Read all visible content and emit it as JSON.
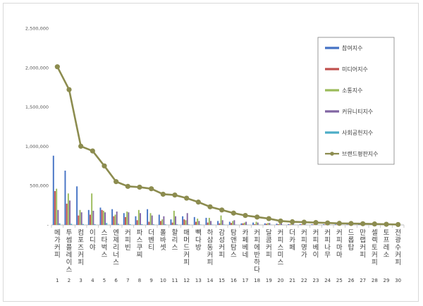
{
  "chart_data": {
    "type": "bar",
    "title": "",
    "xlabel": "",
    "ylabel": "",
    "ylim": [
      0,
      2500000
    ],
    "yticks": [
      "-",
      "500,000",
      "1,000,000",
      "1,500,000",
      "2,000,000",
      "2,500,000"
    ],
    "grid": false,
    "legend_position": "right",
    "indices": [
      "1",
      "2",
      "3",
      "4",
      "5",
      "6",
      "7",
      "8",
      "9",
      "10",
      "11",
      "12",
      "13",
      "14",
      "15",
      "16",
      "17",
      "18",
      "19",
      "20",
      "21",
      "22",
      "23",
      "24",
      "25",
      "26",
      "27",
      "28",
      "29",
      "30"
    ],
    "categories": [
      "메가커피",
      "투썸플레이스",
      "컴포즈커피",
      "이디야",
      "스타벅스",
      "엔제리너스",
      "커피빈",
      "파스쿠찌",
      "더벤티",
      "폴바셋",
      "할리스",
      "매머드커피",
      "빽다방",
      "하삼동커피",
      "감성커피",
      "탐앤탐스",
      "카페베네",
      "커피에반하다",
      "달콤커피",
      "커피스미스",
      "더카페",
      "커피명가",
      "커피베이",
      "커피나무",
      "커피마마",
      "드롭탑",
      "만랩커피",
      "셀렉토커피",
      "토프레소",
      "전광수커피"
    ],
    "series": [
      {
        "name": "참여지수",
        "type": "bar",
        "color": "#4472c4",
        "values": [
          880000,
          690000,
          490000,
          190000,
          220000,
          200000,
          150000,
          110000,
          200000,
          130000,
          70000,
          110000,
          100000,
          90000,
          50000,
          40000,
          20000,
          30000,
          20000,
          15000,
          10000,
          10000,
          8000,
          8000,
          7000,
          6000,
          5000,
          5000,
          4000,
          3000
        ]
      },
      {
        "name": "미디어지수",
        "type": "bar",
        "color": "#c0504d",
        "values": [
          430000,
          270000,
          120000,
          130000,
          190000,
          110000,
          100000,
          60000,
          40000,
          50000,
          30000,
          70000,
          40000,
          30000,
          20000,
          25000,
          20000,
          10000,
          15000,
          10000,
          8000,
          8000,
          6000,
          6000,
          5000,
          4000,
          4000,
          4000,
          3000,
          3000
        ]
      },
      {
        "name": "소통지수",
        "type": "bar",
        "color": "#9bbb59",
        "values": [
          460000,
          400000,
          190000,
          400000,
          180000,
          130000,
          170000,
          190000,
          150000,
          70000,
          180000,
          60000,
          80000,
          90000,
          120000,
          50000,
          30000,
          40000,
          25000,
          20000,
          15000,
          15000,
          12000,
          10000,
          10000,
          8000,
          8000,
          6000,
          5000,
          4000
        ]
      },
      {
        "name": "커뮤니티지수",
        "type": "bar",
        "color": "#8064a2",
        "values": [
          190000,
          310000,
          160000,
          180000,
          160000,
          170000,
          160000,
          150000,
          120000,
          110000,
          110000,
          150000,
          50000,
          50000,
          60000,
          60000,
          40000,
          30000,
          25000,
          20000,
          15000,
          12000,
          10000,
          8000,
          8000,
          6000,
          6000,
          5000,
          5000,
          4000
        ]
      },
      {
        "name": "사회공헌지수",
        "type": "bar",
        "color": "#4bacc6",
        "values": [
          20000,
          15000,
          12000,
          10000,
          25000,
          15000,
          10000,
          10000,
          8000,
          8000,
          8000,
          6000,
          5000,
          5000,
          5000,
          4000,
          3000,
          3000,
          3000,
          2000,
          2000,
          2000,
          2000,
          2000,
          1000,
          1000,
          1000,
          1000,
          1000,
          1000
        ]
      },
      {
        "name": "브랜드평판지수",
        "type": "line",
        "color": "#8c8c4f",
        "values": [
          2010000,
          1720000,
          1000000,
          940000,
          750000,
          550000,
          490000,
          480000,
          460000,
          390000,
          380000,
          340000,
          290000,
          230000,
          190000,
          150000,
          120000,
          100000,
          80000,
          50000,
          40000,
          35000,
          30000,
          25000,
          20000,
          18000,
          15000,
          12000,
          8000,
          5000
        ]
      }
    ]
  }
}
